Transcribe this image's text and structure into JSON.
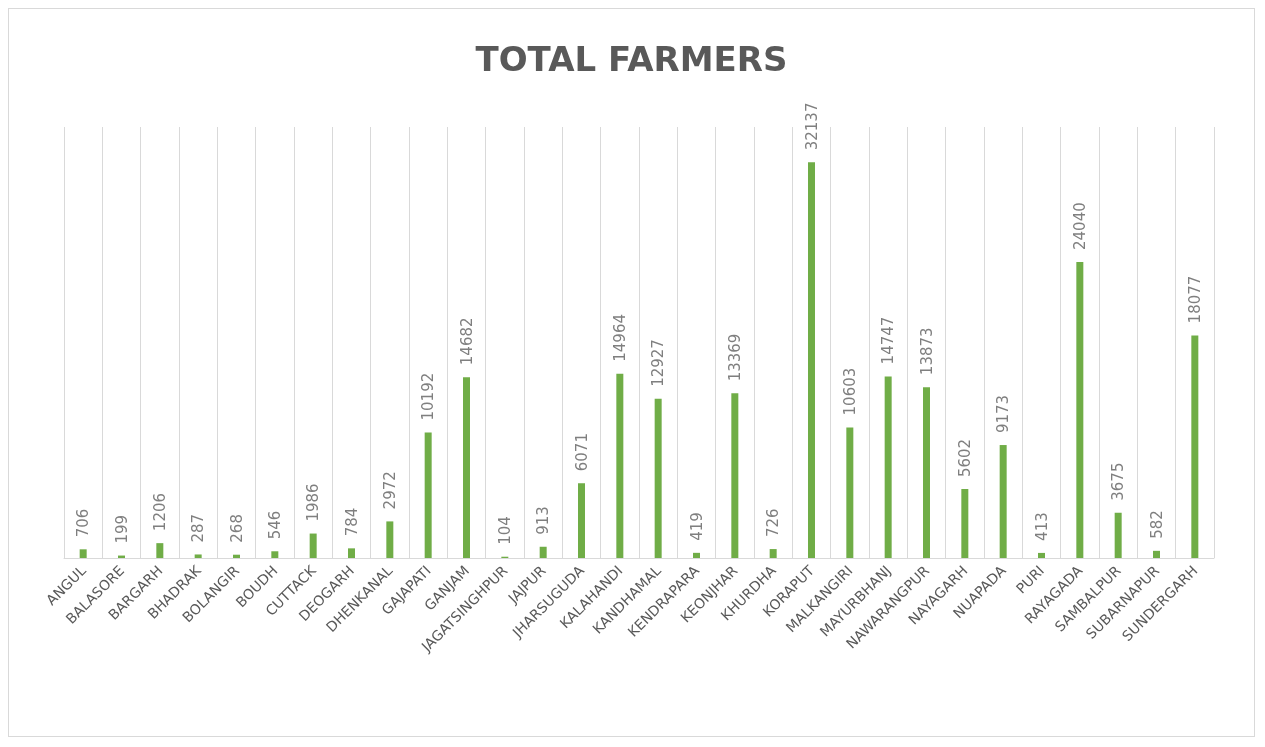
{
  "chart_data": {
    "type": "bar",
    "title": "TOTAL FARMERS",
    "categories": [
      "ANGUL",
      "BALASORE",
      "BARGARH",
      "BHADRAK",
      "BOLANGIR",
      "BOUDH",
      "CUTTACK",
      "DEOGARH",
      "DHENKANAL",
      "GAJAPATI",
      "GANJAM",
      "JAGATSINGHPUR",
      "JAJPUR",
      "JHARSUGUDA",
      "KALAHANDI",
      "KANDHAMAL",
      "KENDRAPARA",
      "KEONJHAR",
      "KHURDHA",
      "KORAPUT",
      "MALKANGIRI",
      "MAYURBHANJ",
      "NAWARANGPUR",
      "NAYAGARH",
      "NUAPADA",
      "PURI",
      "RAYAGADA",
      "SAMBALPUR",
      "SUBARNAPUR",
      "SUNDERGARH"
    ],
    "values": [
      706,
      199,
      1206,
      287,
      268,
      546,
      1986,
      784,
      2972,
      10192,
      14682,
      104,
      913,
      6071,
      14964,
      12927,
      419,
      13369,
      726,
      32137,
      10603,
      14747,
      13873,
      5602,
      9173,
      413,
      24040,
      3675,
      582,
      18077
    ],
    "color": "#70ad47",
    "data_labels": true,
    "grid": "x"
  }
}
